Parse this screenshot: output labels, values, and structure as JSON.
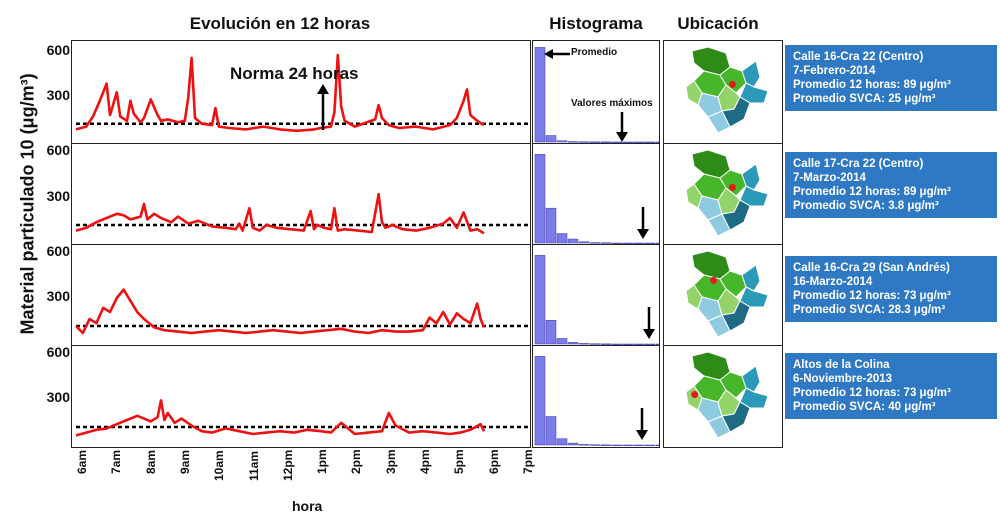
{
  "titles": {
    "evolucion": "Evolución en 12 horas",
    "histograma": "Histograma",
    "ubicacion": "Ubicación"
  },
  "ylabel": "Material particulado 10 (μg/m³)",
  "xlabel": "hora",
  "annotations": {
    "norma": "Norma 24 horas",
    "promedio": "Promedio",
    "valores_maximos": "Valores máximos"
  },
  "chart_data": {
    "type": "line",
    "x_tick_labels": [
      "6am",
      "7am",
      "8am",
      "9am",
      "10am",
      "11am",
      "12pm",
      "1pm",
      "2pm",
      "3pm",
      "4pm",
      "5pm",
      "6pm",
      "7pm"
    ],
    "y_ticks": [
      "600",
      "300"
    ],
    "ylim": [
      0,
      650
    ],
    "norma_24h": 100,
    "panels": [
      {
        "station": "Calle 16-Cra 22  (Centro)",
        "date": "7-Febrero-2014",
        "promedio_12h": "Promedio 12 horas: 89 μg/m³",
        "promedio_svca": "Promedio SVCA: 25 μg/m³",
        "series_x_hours": [
          6.0,
          6.3,
          6.5,
          6.7,
          6.9,
          7.0,
          7.1,
          7.2,
          7.3,
          7.5,
          7.6,
          7.7,
          7.9,
          8.0,
          8.2,
          8.4,
          8.5,
          8.7,
          9.0,
          9.2,
          9.3,
          9.4,
          9.5,
          9.7,
          10.0,
          10.1,
          10.2,
          10.5,
          11.0,
          11.5,
          12.0,
          12.5,
          13.0,
          13.2,
          13.5,
          13.6,
          13.7,
          13.8,
          13.9,
          14.2,
          14.8,
          14.9,
          15.0,
          15.2,
          15.5,
          16.0,
          16.5,
          17.0,
          17.2,
          17.4,
          17.5,
          17.6,
          17.8,
          18.0
        ],
        "series_y": [
          60,
          80,
          150,
          260,
          380,
          160,
          240,
          320,
          150,
          120,
          260,
          170,
          110,
          140,
          270,
          160,
          120,
          130,
          110,
          120,
          280,
          560,
          140,
          100,
          90,
          210,
          80,
          70,
          60,
          80,
          60,
          50,
          60,
          70,
          80,
          180,
          580,
          220,
          120,
          80,
          130,
          230,
          140,
          90,
          70,
          80,
          60,
          90,
          140,
          260,
          340,
          160,
          120,
          90
        ],
        "histogram_bins": [
          585,
          40,
          8,
          3,
          2,
          1,
          1,
          0,
          0,
          0,
          0,
          0,
          0
        ]
      },
      {
        "station": "Calle 17-Cra 22 (Centro)",
        "date": "7-Marzo-2014",
        "promedio_12h": "Promedio 12 horas: 89 μg/m³",
        "promedio_svca": "Promedio SVCA: 3.8 μg/m³",
        "series_x_hours": [
          6.0,
          6.3,
          6.6,
          6.9,
          7.2,
          7.4,
          7.6,
          7.9,
          8.0,
          8.1,
          8.3,
          8.5,
          8.8,
          9.0,
          9.3,
          9.6,
          10.0,
          10.4,
          10.7,
          10.8,
          10.9,
          11.1,
          11.2,
          11.4,
          11.6,
          11.9,
          12.3,
          12.7,
          12.9,
          13.0,
          13.1,
          13.3,
          13.5,
          13.6,
          13.7,
          13.9,
          14.3,
          14.7,
          14.9,
          15.0,
          15.1,
          15.3,
          15.6,
          16.0,
          16.4,
          16.8,
          17.0,
          17.2,
          17.4,
          17.6,
          17.8,
          18.0
        ],
        "series_y": [
          60,
          80,
          120,
          150,
          180,
          170,
          140,
          160,
          250,
          140,
          180,
          150,
          120,
          160,
          110,
          130,
          90,
          80,
          70,
          110,
          60,
          220,
          80,
          60,
          100,
          80,
          70,
          60,
          200,
          70,
          100,
          80,
          70,
          220,
          60,
          70,
          60,
          50,
          320,
          120,
          80,
          100,
          70,
          60,
          80,
          110,
          150,
          80,
          190,
          60,
          70,
          40
        ],
        "histogram_bins": [
          560,
          220,
          60,
          25,
          8,
          3,
          2,
          0,
          0,
          0,
          0,
          0,
          0
        ]
      },
      {
        "station": "Calle 16-Cra 29 (San Andrés)",
        "date": "16-Marzo-2014",
        "promedio_12h": "Promedio 12 horas: 73 μg/m³",
        "promedio_svca": "Promedio SVCA: 28.3 μg/m³",
        "series_x_hours": [
          6.0,
          6.2,
          6.4,
          6.6,
          6.8,
          7.0,
          7.2,
          7.4,
          7.6,
          7.8,
          8.0,
          8.3,
          8.6,
          9.0,
          9.4,
          9.8,
          10.2,
          10.6,
          11.0,
          11.4,
          11.8,
          12.2,
          12.6,
          13.0,
          13.4,
          13.8,
          14.2,
          14.6,
          15.0,
          15.4,
          15.8,
          16.2,
          16.4,
          16.6,
          16.8,
          17.0,
          17.2,
          17.4,
          17.6,
          17.8,
          17.9,
          18.0
        ],
        "series_y": [
          100,
          50,
          150,
          120,
          230,
          200,
          300,
          360,
          280,
          200,
          150,
          90,
          70,
          60,
          50,
          60,
          70,
          60,
          50,
          60,
          70,
          60,
          50,
          60,
          70,
          80,
          60,
          50,
          70,
          60,
          60,
          70,
          160,
          120,
          200,
          110,
          190,
          150,
          120,
          260,
          150,
          90
        ],
        "histogram_bins": [
          560,
          150,
          35,
          10,
          4,
          2,
          1,
          0,
          0,
          0,
          0,
          0,
          0
        ]
      },
      {
        "station": "Altos de la Colina",
        "date": "6-Noviembre-2013",
        "promedio_12h": "Promedio 12 horas: 73 μg/m³",
        "promedio_svca": "Promedio SVCA: 40 μg/m³",
        "series_x_hours": [
          6.0,
          6.3,
          6.6,
          6.9,
          7.2,
          7.5,
          7.8,
          8.0,
          8.2,
          8.4,
          8.5,
          8.6,
          8.7,
          8.9,
          9.1,
          9.4,
          9.7,
          10.0,
          10.4,
          10.8,
          11.2,
          11.6,
          12.0,
          12.4,
          12.8,
          13.2,
          13.5,
          13.8,
          14.2,
          14.6,
          15.0,
          15.2,
          15.4,
          15.8,
          16.2,
          16.6,
          17.0,
          17.3,
          17.6,
          17.9,
          18.0
        ],
        "series_y": [
          40,
          60,
          80,
          90,
          120,
          150,
          180,
          160,
          140,
          170,
          290,
          150,
          200,
          130,
          160,
          110,
          70,
          60,
          90,
          70,
          50,
          60,
          70,
          60,
          80,
          70,
          60,
          130,
          50,
          60,
          70,
          200,
          110,
          60,
          70,
          60,
          50,
          60,
          80,
          120,
          70
        ],
        "histogram_bins": [
          560,
          180,
          40,
          12,
          4,
          2,
          1,
          0,
          0,
          0,
          0,
          0,
          0
        ]
      }
    ]
  },
  "colors": {
    "line": "#ee1111",
    "histogram": "#7b7bea",
    "info_box": "#2e78c4",
    "map_dark_green": "#2e8b18",
    "map_green": "#48b62a",
    "map_light_green": "#93d36a",
    "map_teal": "#2a9ab8",
    "map_light_blue": "#8fcbe0",
    "map_dark_teal": "#1f6b86",
    "marker": "#e31b1b"
  },
  "maps": [
    {
      "marker": [
        0.58,
        0.43
      ]
    },
    {
      "marker": [
        0.58,
        0.43
      ]
    },
    {
      "marker": [
        0.42,
        0.35
      ]
    },
    {
      "marker": [
        0.26,
        0.48
      ]
    }
  ]
}
